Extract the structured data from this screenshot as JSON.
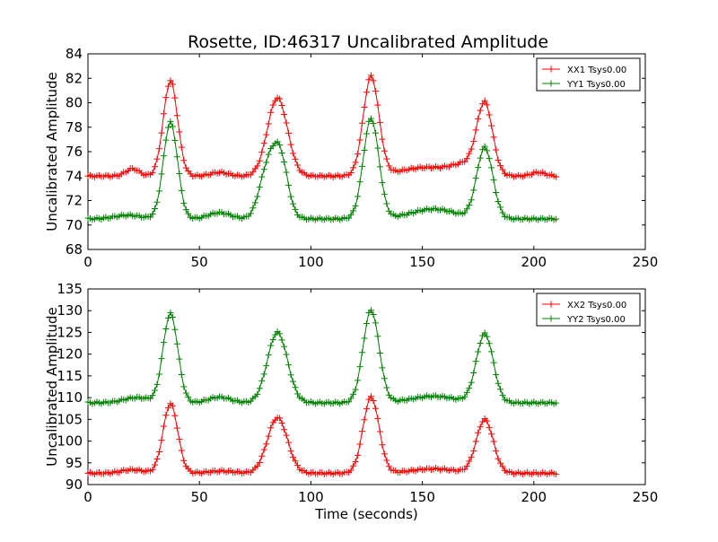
{
  "title": "Rosette, ID:46317 Uncalibrated Amplitude",
  "chart_data": [
    {
      "type": "line",
      "title": "Rosette, ID:46317 Uncalibrated Amplitude",
      "xlabel": "",
      "ylabel": "Uncalibrated Amplitude",
      "xlim": [
        0,
        250
      ],
      "ylim": [
        68,
        84
      ],
      "xticks": [
        0,
        50,
        100,
        150,
        200,
        250
      ],
      "yticks": [
        68,
        70,
        72,
        74,
        76,
        78,
        80,
        82,
        84
      ],
      "grid": false,
      "legend_position": "top-right",
      "marker": "+",
      "x_range": [
        0,
        210
      ],
      "sample_step": 1,
      "series": [
        {
          "name": "XX1 Tsys0.00",
          "color": "#ff0000",
          "baseline": 74.0,
          "bumps": [
            {
              "x": 20,
              "height": 0.6,
              "width": 3
            },
            {
              "x": 37,
              "height": 7.8,
              "width": 3.2
            },
            {
              "x": 59,
              "height": 0.3,
              "width": 4
            },
            {
              "x": 85,
              "height": 6.4,
              "width": 4.5
            },
            {
              "x": 127,
              "height": 8.1,
              "width": 3.5
            },
            {
              "x": 152,
              "height": 0.7,
              "width": 12
            },
            {
              "x": 170,
              "height": 0.8,
              "width": 6
            },
            {
              "x": 178,
              "height": 5.7,
              "width": 3.5
            },
            {
              "x": 202,
              "height": 0.3,
              "width": 3
            }
          ]
        },
        {
          "name": "YY1 Tsys0.00",
          "color": "#008000",
          "baseline": 70.5,
          "bumps": [
            {
              "x": 18,
              "height": 0.3,
              "width": 6
            },
            {
              "x": 37,
              "height": 7.9,
              "width": 3.2
            },
            {
              "x": 59,
              "height": 0.5,
              "width": 5
            },
            {
              "x": 80,
              "height": 3.5,
              "width": 3.5
            },
            {
              "x": 86,
              "height": 5.2,
              "width": 3.5
            },
            {
              "x": 127,
              "height": 8.2,
              "width": 3.5
            },
            {
              "x": 155,
              "height": 0.8,
              "width": 10
            },
            {
              "x": 178,
              "height": 5.8,
              "width": 3.6
            }
          ]
        }
      ]
    },
    {
      "type": "line",
      "title": "",
      "xlabel": "Time (seconds)",
      "ylabel": "Uncalibrated Amplitude",
      "xlim": [
        0,
        250
      ],
      "ylim": [
        90,
        135
      ],
      "xticks": [
        0,
        50,
        100,
        150,
        200,
        250
      ],
      "yticks": [
        90,
        95,
        100,
        105,
        110,
        115,
        120,
        125,
        130,
        135
      ],
      "grid": false,
      "legend_position": "top-right",
      "marker": "+",
      "x_range": [
        0,
        210
      ],
      "sample_step": 1,
      "series": [
        {
          "name": "XX2 Tsys0.00",
          "color": "#ff0000",
          "baseline": 92.6,
          "bumps": [
            {
              "x": 20,
              "height": 0.8,
              "width": 5
            },
            {
              "x": 37,
              "height": 16.0,
              "width": 3.3
            },
            {
              "x": 60,
              "height": 0.5,
              "width": 6
            },
            {
              "x": 85,
              "height": 12.8,
              "width": 4.5
            },
            {
              "x": 127,
              "height": 17.5,
              "width": 3.6
            },
            {
              "x": 155,
              "height": 1.0,
              "width": 10
            },
            {
              "x": 178,
              "height": 12.3,
              "width": 3.8
            }
          ]
        },
        {
          "name": "YY2 Tsys0.00",
          "color": "#008000",
          "baseline": 108.8,
          "bumps": [
            {
              "x": 22,
              "height": 1.2,
              "width": 6
            },
            {
              "x": 37,
              "height": 20.5,
              "width": 3.3
            },
            {
              "x": 59,
              "height": 1.3,
              "width": 5
            },
            {
              "x": 85,
              "height": 16.2,
              "width": 4.5
            },
            {
              "x": 127,
              "height": 21.3,
              "width": 3.6
            },
            {
              "x": 155,
              "height": 1.5,
              "width": 10
            },
            {
              "x": 178,
              "height": 15.8,
              "width": 3.8
            }
          ]
        }
      ]
    }
  ]
}
